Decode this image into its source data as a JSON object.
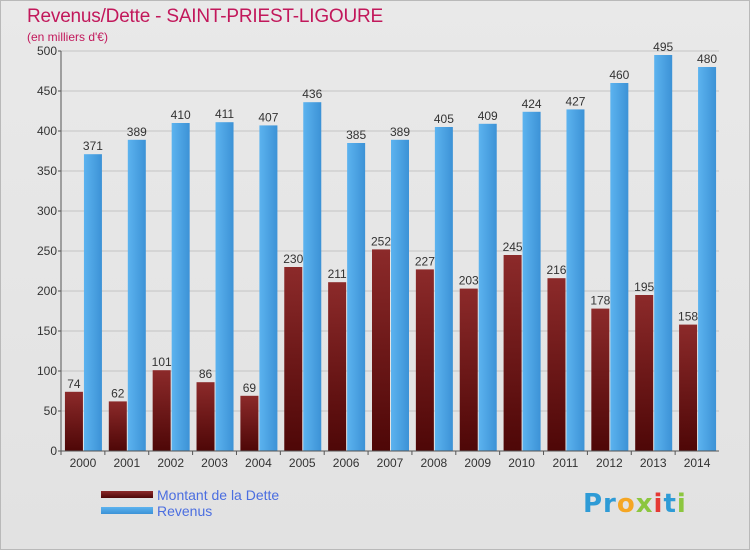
{
  "header": {
    "title": "Revenus/Dette - SAINT-PRIEST-LIGOURE",
    "subtitle": "(en milliers d'€)"
  },
  "chart_data": {
    "type": "bar",
    "title": "Revenus/Dette - SAINT-PRIEST-LIGOURE",
    "subtitle": "(en milliers d'€)",
    "categories": [
      "2000",
      "2001",
      "2002",
      "2003",
      "2004",
      "2005",
      "2006",
      "2007",
      "2008",
      "2009",
      "2010",
      "2011",
      "2012",
      "2013",
      "2014"
    ],
    "series": [
      {
        "name": "Montant de la Dette",
        "color": "#7a1c1c",
        "values": [
          74,
          62,
          101,
          86,
          69,
          230,
          211,
          252,
          227,
          203,
          245,
          216,
          178,
          195,
          158
        ]
      },
      {
        "name": "Revenus",
        "color": "#4ea6e6",
        "values": [
          371,
          389,
          410,
          411,
          407,
          436,
          385,
          389,
          405,
          409,
          424,
          427,
          460,
          495,
          480
        ]
      }
    ],
    "ylim": [
      0,
      500
    ],
    "yticks": [
      0,
      50,
      100,
      150,
      200,
      250,
      300,
      350,
      400,
      450,
      500
    ],
    "grid": true,
    "legend_position": "bottom-left"
  },
  "legend": {
    "items": [
      {
        "label": "Montant de la Dette",
        "color": "#6b1010"
      },
      {
        "label": "Revenus",
        "color": "#4ea6e6"
      }
    ]
  },
  "logo": {
    "parts": [
      "Pr",
      "o",
      "x",
      "i",
      "t",
      "i"
    ]
  }
}
